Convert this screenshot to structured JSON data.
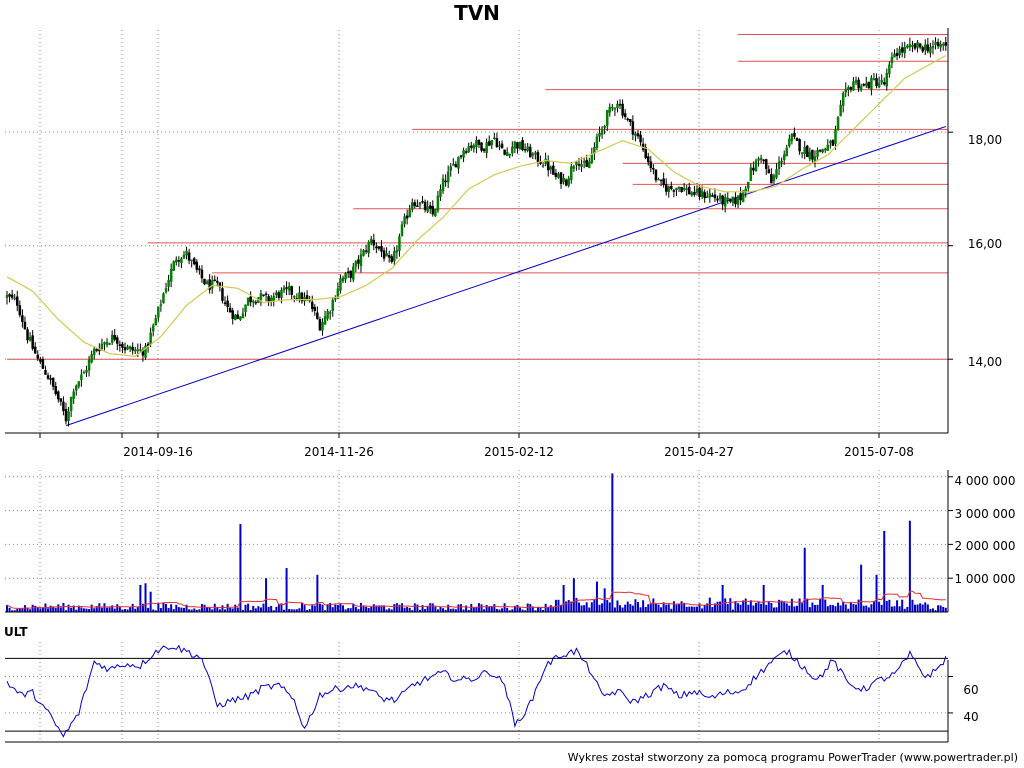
{
  "chart_data": [
    {
      "panel": "price",
      "type": "candlestick",
      "title": "TVN",
      "x_tick_labels": [
        "2014-09-16",
        "2014-11-26",
        "2015-02-12",
        "2015-04-27",
        "2015-07-08"
      ],
      "y_tick_labels": [
        "14,00",
        "16,00",
        "18,00"
      ],
      "y_ticks": [
        14,
        16,
        18
      ],
      "ylim": [
        12.7,
        19.8
      ],
      "grid": true,
      "price_anchors": [
        [
          0,
          15.1
        ],
        [
          4,
          15.0
        ],
        [
          8,
          14.4
        ],
        [
          12,
          14.0
        ],
        [
          16,
          13.7
        ],
        [
          20,
          13.3
        ],
        [
          23,
          12.95
        ],
        [
          26,
          13.5
        ],
        [
          30,
          13.75
        ],
        [
          34,
          14.15
        ],
        [
          38,
          14.3
        ],
        [
          42,
          14.4
        ],
        [
          46,
          14.2
        ],
        [
          50,
          14.15
        ],
        [
          54,
          14.15
        ],
        [
          58,
          14.7
        ],
        [
          62,
          15.3
        ],
        [
          66,
          15.8
        ],
        [
          70,
          15.85
        ],
        [
          74,
          15.55
        ],
        [
          78,
          15.3
        ],
        [
          82,
          15.3
        ],
        [
          86,
          14.9
        ],
        [
          90,
          14.7
        ],
        [
          94,
          15.05
        ],
        [
          98,
          15.1
        ],
        [
          102,
          15.05
        ],
        [
          106,
          15.15
        ],
        [
          110,
          15.2
        ],
        [
          114,
          15.1
        ],
        [
          118,
          15.0
        ],
        [
          122,
          14.6
        ],
        [
          126,
          14.9
        ],
        [
          130,
          15.4
        ],
        [
          134,
          15.5
        ],
        [
          138,
          15.8
        ],
        [
          142,
          16.1
        ],
        [
          146,
          15.9
        ],
        [
          150,
          15.65
        ],
        [
          154,
          16.3
        ],
        [
          158,
          16.8
        ],
        [
          162,
          16.7
        ],
        [
          166,
          16.55
        ],
        [
          170,
          17.1
        ],
        [
          174,
          17.4
        ],
        [
          178,
          17.7
        ],
        [
          182,
          17.8
        ],
        [
          186,
          17.75
        ],
        [
          190,
          17.9
        ],
        [
          194,
          17.6
        ],
        [
          198,
          17.8
        ],
        [
          202,
          17.7
        ],
        [
          206,
          17.55
        ],
        [
          210,
          17.45
        ],
        [
          214,
          17.2
        ],
        [
          218,
          17.15
        ],
        [
          222,
          17.55
        ],
        [
          226,
          17.35
        ],
        [
          230,
          17.85
        ],
        [
          234,
          18.3
        ],
        [
          238,
          18.55
        ],
        [
          242,
          18.2
        ],
        [
          246,
          17.9
        ],
        [
          250,
          17.5
        ],
        [
          254,
          17.1
        ],
        [
          258,
          17.0
        ],
        [
          262,
          17.05
        ],
        [
          266,
          16.95
        ],
        [
          270,
          16.9
        ],
        [
          274,
          16.9
        ],
        [
          278,
          16.8
        ],
        [
          282,
          16.75
        ],
        [
          286,
          16.85
        ],
        [
          290,
          17.3
        ],
        [
          294,
          17.6
        ],
        [
          298,
          17.1
        ],
        [
          302,
          17.55
        ],
        [
          306,
          17.9
        ],
        [
          310,
          17.7
        ],
        [
          314,
          17.6
        ],
        [
          318,
          17.7
        ],
        [
          322,
          17.8
        ],
        [
          326,
          18.6
        ],
        [
          330,
          18.9
        ],
        [
          334,
          18.8
        ],
        [
          338,
          18.9
        ],
        [
          342,
          18.85
        ],
        [
          346,
          19.4
        ],
        [
          350,
          19.45
        ],
        [
          354,
          19.5
        ],
        [
          358,
          19.5
        ],
        [
          362,
          19.5
        ],
        [
          366,
          19.55
        ]
      ],
      "ma_anchors": [
        [
          0,
          15.45
        ],
        [
          10,
          15.2
        ],
        [
          20,
          14.7
        ],
        [
          30,
          14.3
        ],
        [
          40,
          14.1
        ],
        [
          50,
          14.05
        ],
        [
          60,
          14.4
        ],
        [
          70,
          14.95
        ],
        [
          80,
          15.3
        ],
        [
          90,
          15.25
        ],
        [
          100,
          15.0
        ],
        [
          110,
          15.05
        ],
        [
          120,
          15.05
        ],
        [
          130,
          15.1
        ],
        [
          140,
          15.3
        ],
        [
          150,
          15.6
        ],
        [
          160,
          16.1
        ],
        [
          170,
          16.5
        ],
        [
          180,
          17.0
        ],
        [
          190,
          17.25
        ],
        [
          200,
          17.4
        ],
        [
          210,
          17.5
        ],
        [
          220,
          17.45
        ],
        [
          230,
          17.65
        ],
        [
          240,
          17.85
        ],
        [
          250,
          17.7
        ],
        [
          260,
          17.3
        ],
        [
          270,
          17.05
        ],
        [
          280,
          16.95
        ],
        [
          290,
          16.95
        ],
        [
          300,
          17.05
        ],
        [
          310,
          17.35
        ],
        [
          320,
          17.6
        ],
        [
          330,
          18.05
        ],
        [
          340,
          18.5
        ],
        [
          350,
          18.95
        ],
        [
          360,
          19.2
        ],
        [
          366,
          19.35
        ]
      ],
      "trendline": [
        [
          23,
          12.83
        ],
        [
          366,
          18.1
        ]
      ],
      "support_resistance": [
        {
          "from": 0,
          "level": 14.0
        },
        {
          "from": 80,
          "level": 15.52
        },
        {
          "from": 55,
          "level": 16.05
        },
        {
          "from": 135,
          "level": 16.65
        },
        {
          "from": 244,
          "level": 17.08
        },
        {
          "from": 240,
          "level": 17.45
        },
        {
          "from": 158,
          "level": 18.05
        },
        {
          "from": 210,
          "level": 18.75
        },
        {
          "from": 285,
          "level": 19.25
        },
        {
          "from": 285,
          "level": 19.72
        }
      ],
      "colors": {
        "candle_up": "#008000",
        "candle_down": "#000000",
        "ma": "#d4c850",
        "trend": "#0000cc",
        "levels": "#e05050"
      }
    },
    {
      "panel": "volume",
      "type": "bar",
      "y_tick_labels": [
        "1 000 000",
        "2 000 000",
        "3 000 000",
        "4 000 000"
      ],
      "y_ticks": [
        1000000,
        2000000,
        3000000,
        4000000
      ],
      "ylim": [
        0,
        4200000
      ],
      "spikes": [
        [
          52,
          800000
        ],
        [
          54,
          850000
        ],
        [
          56,
          600000
        ],
        [
          91,
          2600000
        ],
        [
          101,
          1000000
        ],
        [
          109,
          1300000
        ],
        [
          121,
          1100000
        ],
        [
          217,
          800000
        ],
        [
          221,
          1000000
        ],
        [
          230,
          900000
        ],
        [
          233,
          700000
        ],
        [
          236,
          4100000
        ],
        [
          279,
          800000
        ],
        [
          295,
          800000
        ],
        [
          311,
          1900000
        ],
        [
          318,
          800000
        ],
        [
          333,
          1400000
        ],
        [
          339,
          1100000
        ],
        [
          342,
          2400000
        ],
        [
          352,
          2700000
        ]
      ],
      "colors": {
        "bars": "#0000cc",
        "ma": "#e03030"
      }
    },
    {
      "panel": "oscillator",
      "type": "line",
      "label": "ULT",
      "y_tick_labels": [
        "40",
        "60"
      ],
      "y_ticks": [
        40,
        60
      ],
      "ylim": [
        24,
        79
      ],
      "levels": [
        30,
        70
      ],
      "ult_anchors": [
        [
          0,
          57
        ],
        [
          5,
          50
        ],
        [
          10,
          51
        ],
        [
          16,
          40
        ],
        [
          22,
          27
        ],
        [
          28,
          40
        ],
        [
          34,
          68
        ],
        [
          40,
          64
        ],
        [
          46,
          67
        ],
        [
          52,
          66
        ],
        [
          58,
          74
        ],
        [
          64,
          77
        ],
        [
          70,
          74
        ],
        [
          76,
          70
        ],
        [
          82,
          44
        ],
        [
          88,
          47
        ],
        [
          94,
          49
        ],
        [
          100,
          54
        ],
        [
          106,
          55
        ],
        [
          112,
          47
        ],
        [
          116,
          31
        ],
        [
          122,
          50
        ],
        [
          128,
          53
        ],
        [
          134,
          55
        ],
        [
          140,
          54
        ],
        [
          146,
          48
        ],
        [
          152,
          47
        ],
        [
          158,
          55
        ],
        [
          164,
          59
        ],
        [
          170,
          62
        ],
        [
          176,
          58
        ],
        [
          182,
          59
        ],
        [
          188,
          63
        ],
        [
          194,
          56
        ],
        [
          198,
          33
        ],
        [
          204,
          45
        ],
        [
          210,
          66
        ],
        [
          216,
          72
        ],
        [
          222,
          74
        ],
        [
          228,
          62
        ],
        [
          232,
          49
        ],
        [
          238,
          52
        ],
        [
          244,
          46
        ],
        [
          250,
          50
        ],
        [
          256,
          55
        ],
        [
          262,
          49
        ],
        [
          268,
          52
        ],
        [
          274,
          48
        ],
        [
          280,
          51
        ],
        [
          286,
          52
        ],
        [
          292,
          60
        ],
        [
          298,
          68
        ],
        [
          304,
          74
        ],
        [
          310,
          66
        ],
        [
          316,
          58
        ],
        [
          322,
          69
        ],
        [
          328,
          56
        ],
        [
          334,
          53
        ],
        [
          340,
          58
        ],
        [
          346,
          61
        ],
        [
          352,
          72
        ],
        [
          358,
          60
        ],
        [
          362,
          63
        ],
        [
          366,
          70
        ]
      ],
      "colors": {
        "line": "#0000cc",
        "levels": "#000000"
      }
    }
  ],
  "footer": "Wykres został stworzony za pomocą programu PowerTrader (www.powertrader.pl)"
}
